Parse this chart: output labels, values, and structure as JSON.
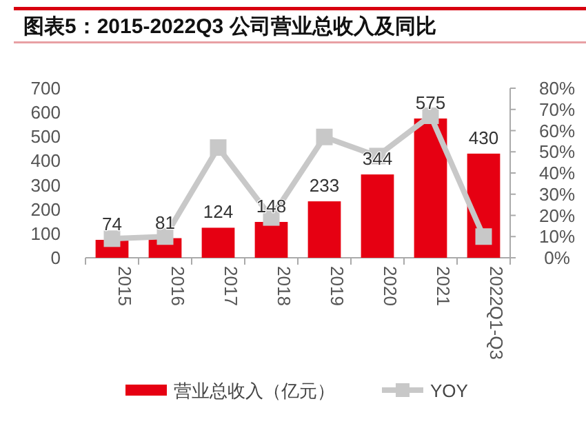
{
  "chart_data": {
    "type": "bar",
    "title": "图表5：2015-2022Q3 公司营业总收入及同比",
    "categories": [
      "2015",
      "2016",
      "2017",
      "2018",
      "2019",
      "2020",
      "2021",
      "2022Q1-Q3"
    ],
    "series": [
      {
        "name": "营业总收入（亿元）",
        "color": "#e60012",
        "values": [
          74,
          81,
          124,
          148,
          233,
          344,
          575,
          430
        ],
        "value_labels": [
          "74",
          "81",
          "124",
          "148",
          "233",
          "344",
          "575",
          "430"
        ]
      },
      {
        "name": "YOY",
        "type": "line",
        "axis": "y2",
        "color": "#c8c8c8",
        "marker": "square",
        "values": [
          9,
          10,
          52,
          19,
          57,
          48,
          67,
          10
        ]
      }
    ],
    "ylim": [
      0,
      700
    ],
    "yticks": [
      0,
      100,
      200,
      300,
      400,
      500,
      600,
      700
    ],
    "y2lim": [
      0,
      80
    ],
    "y2ticks": [
      {
        "value": 0,
        "label": "0%"
      },
      {
        "value": 10,
        "label": "10%"
      },
      {
        "value": 20,
        "label": "20%"
      },
      {
        "value": 30,
        "label": "30%"
      },
      {
        "value": 40,
        "label": "40%"
      },
      {
        "value": 50,
        "label": "50%"
      },
      {
        "value": 60,
        "label": "60%"
      },
      {
        "value": 70,
        "label": "70%"
      },
      {
        "value": 80,
        "label": "80%"
      }
    ],
    "legend": "bottom",
    "grid": false
  }
}
